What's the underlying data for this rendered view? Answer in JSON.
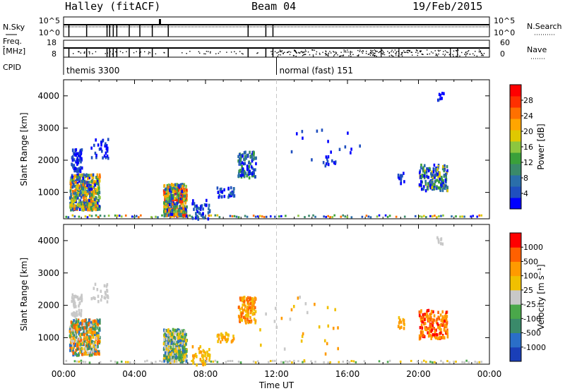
{
  "header": {
    "radar": "Halley (fitACF)",
    "beam": "Beam 04",
    "date": "19/Feb/2015"
  },
  "chart_data": [
    {
      "type": "line",
      "panel": "noise",
      "left_label": "N.Sky",
      "right_label": "N.Search",
      "left_ticks": [
        "10^5",
        "10^0"
      ],
      "right_ticks": [
        "10^5",
        "10^0"
      ]
    },
    {
      "type": "line",
      "panel": "frequency",
      "left_label_top": "Freq.",
      "left_label_bottom": "[MHz]",
      "right_label": "Nave",
      "left_ticks": [
        "18",
        "8"
      ],
      "right_ticks": [
        "60",
        "0"
      ],
      "cpid_label": "CPID",
      "cpid_segments": [
        {
          "label": "themis 3300",
          "start_hour": 0
        },
        {
          "label": "normal (fast) 151",
          "start_hour": 12
        }
      ]
    },
    {
      "type": "heatmap",
      "panel": "power",
      "ylabel": "Slant Range [km]",
      "ylim": [
        180,
        4500
      ],
      "yticks": [
        1000,
        2000,
        3000,
        4000
      ],
      "colorbar_label": "Power [dB]",
      "colorbar_ticks": [
        "28",
        "24",
        "20",
        "16",
        "12",
        "8",
        "4"
      ],
      "colorbar_colors": [
        "#0000ff",
        "#1f4fbf",
        "#2a6eaa",
        "#3a8a6a",
        "#3aa03a",
        "#8cc63f",
        "#e0c800",
        "#ffa500",
        "#ff7000",
        "#ff3000",
        "#ff0000"
      ],
      "xlim": [
        0,
        24
      ],
      "xticks": [
        "00:00",
        "04:00",
        "08:00",
        "12:00",
        "16:00",
        "20:00",
        "00:00"
      ]
    },
    {
      "type": "heatmap",
      "panel": "velocity",
      "ylabel": "Slant Range [km]",
      "ylim": [
        180,
        4500
      ],
      "yticks": [
        1000,
        2000,
        3000,
        4000
      ],
      "colorbar_label": "Velocity [m s⁻¹]",
      "colorbar_ticks": [
        "1000",
        "500",
        "100",
        "25",
        "-25",
        "-100",
        "-500",
        "-1000"
      ],
      "colorbar_colors": [
        "#1a3fb8",
        "#2a6ec8",
        "#3a8a6a",
        "#4aa84a",
        "#c8c8c8",
        "#f0c000",
        "#ff9a00",
        "#ff6000",
        "#ff0000"
      ],
      "xlabel": "Time UT",
      "xlim": [
        0,
        24
      ],
      "xticks": [
        "00:00",
        "04:00",
        "08:00",
        "12:00",
        "16:00",
        "20:00",
        "00:00"
      ]
    }
  ]
}
